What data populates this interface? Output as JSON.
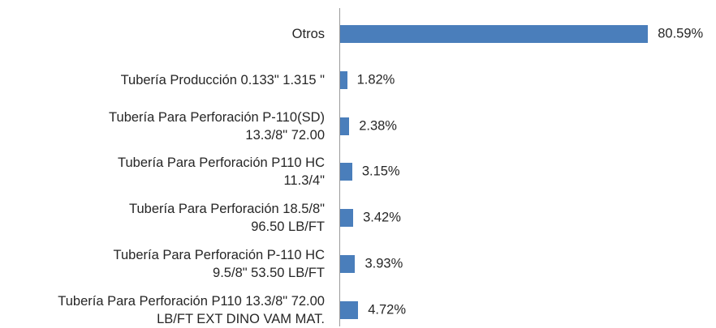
{
  "chart_data": {
    "type": "bar",
    "orientation": "horizontal",
    "categories": [
      "Otros",
      "Tubería Producción  0.133\" 1.315 \"",
      "Tubería Para Perforación P-110(SD)\n13.3/8\" 72.00",
      "Tubería Para Perforación P110 HC\n11.3/4\"",
      "Tubería Para Perforación 18.5/8\"\n96.50 LB/FT",
      "Tubería Para Perforación P-110 HC\n9.5/8\" 53.50 LB/FT",
      "Tubería Para Perforación P110 13.3/8\" 72.00\nLB/FT EXT DINO VAM MAT."
    ],
    "values": [
      80.59,
      1.82,
      2.38,
      3.15,
      3.42,
      3.93,
      4.72
    ],
    "value_labels": [
      "80.59%",
      "1.82%",
      "2.38%",
      "3.15%",
      "3.42%",
      "3.93%",
      "4.72%"
    ],
    "color": "#4a7ebb",
    "xlim": [
      0,
      85
    ]
  }
}
